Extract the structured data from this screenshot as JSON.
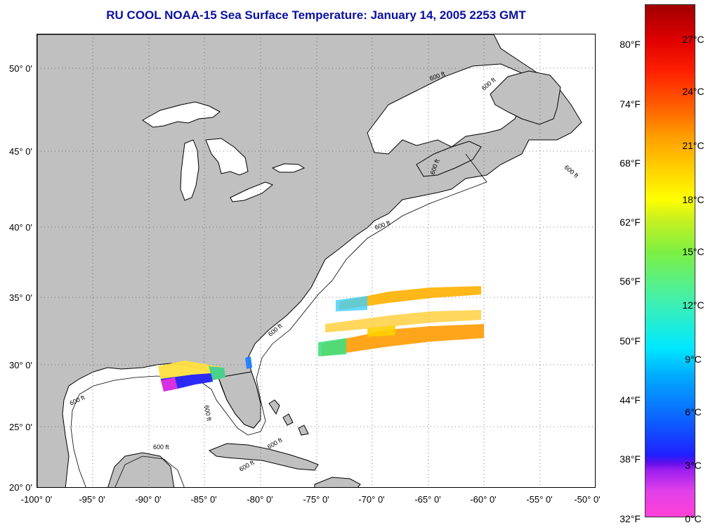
{
  "title": "RU COOL  NOAA-15  Sea Surface Temperature:  January 14, 2005 2253 GMT",
  "lat_labels": [
    "50° 0'",
    "45° 0'",
    "40° 0'",
    "35° 0'",
    "30° 0'",
    "25° 0'",
    "20° 0'"
  ],
  "lon_labels": [
    "-100° 0'",
    "-95° 0'",
    "-90° 0'",
    "-85° 0'",
    "-80° 0'",
    "-75° 0'",
    "-70° 0'",
    "-65° 0'",
    "-60° 0'",
    "-55° 0'",
    "-50° 0'"
  ],
  "isobath_label": "600 ft",
  "colorbar": {
    "fahrenheit": [
      "80°F",
      "74°F",
      "68°F",
      "62°F",
      "56°F",
      "50°F",
      "44°F",
      "38°F",
      "32°F"
    ],
    "celsius": [
      "27°C",
      "24°C",
      "21°C",
      "18°C",
      "15°C",
      "12°C",
      "9°C",
      "6°C",
      "3°C",
      "0°C"
    ]
  },
  "colors": {
    "land": "#c0c0c0",
    "ocean": "#ffffff",
    "title": "#0a10a0"
  }
}
